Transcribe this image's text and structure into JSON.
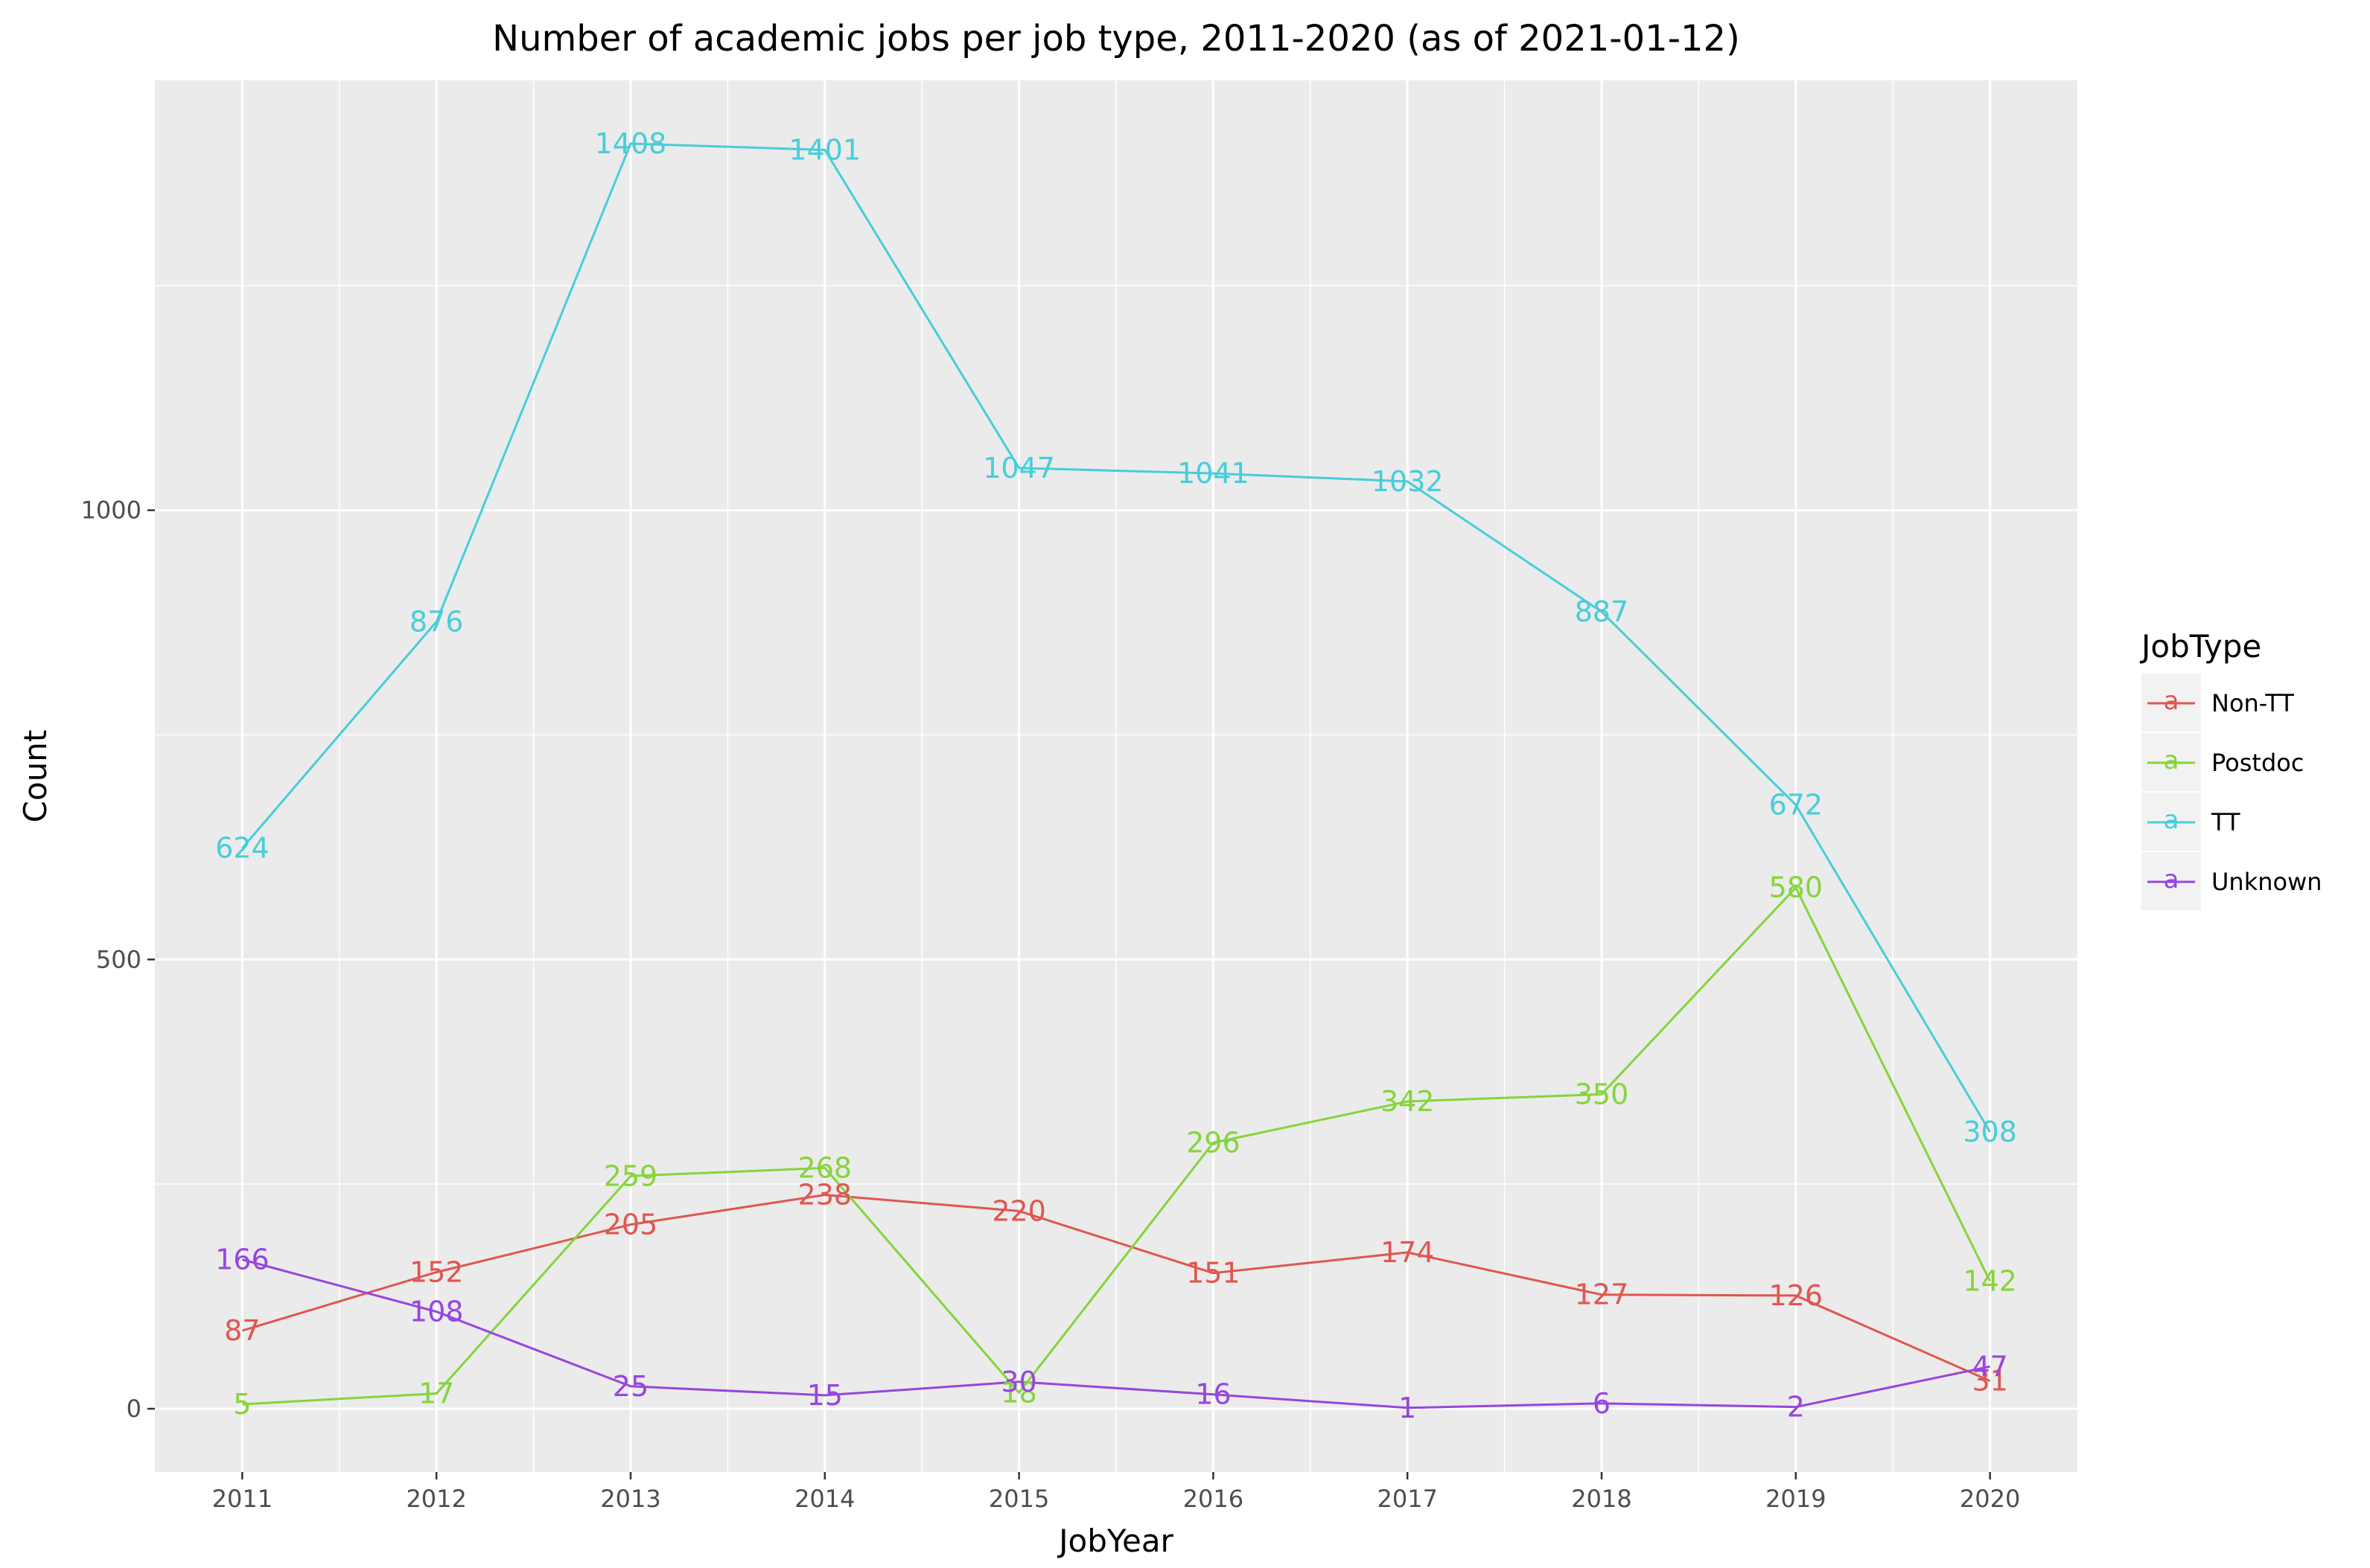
{
  "chart_data": {
    "type": "line",
    "title": "Number of academic jobs per job type, 2011-2020 (as of 2021-01-12)",
    "xlabel": "JobYear",
    "ylabel": "Count",
    "x": [
      2011,
      2012,
      2013,
      2014,
      2015,
      2016,
      2017,
      2018,
      2019,
      2020
    ],
    "x_tick_labels": [
      "2011",
      "2012",
      "2013",
      "2014",
      "2015",
      "2016",
      "2017",
      "2018",
      "2019",
      "2020"
    ],
    "y_ticks": [
      0,
      500,
      1000
    ],
    "y_tick_labels": [
      "0",
      "500",
      "1000"
    ],
    "xlim": [
      2010.55,
      2020.45
    ],
    "ylim": [
      -70.4,
      1478.4
    ],
    "grid": true,
    "legend": {
      "title": "JobType",
      "placement": "right",
      "key_glyph": "a"
    },
    "series": [
      {
        "name": "Non-TT",
        "color": "#e0564f",
        "values": [
          87,
          152,
          205,
          238,
          220,
          151,
          174,
          127,
          126,
          31
        ]
      },
      {
        "name": "Postdoc",
        "color": "#86d43c",
        "values": [
          5,
          17,
          259,
          268,
          18,
          296,
          342,
          350,
          580,
          142
        ]
      },
      {
        "name": "TT",
        "color": "#47cdd9",
        "values": [
          624,
          876,
          1408,
          1401,
          1047,
          1041,
          1032,
          887,
          672,
          308
        ]
      },
      {
        "name": "Unknown",
        "color": "#9646de",
        "values": [
          166,
          108,
          25,
          15,
          30,
          16,
          1,
          6,
          2,
          47
        ]
      }
    ]
  }
}
